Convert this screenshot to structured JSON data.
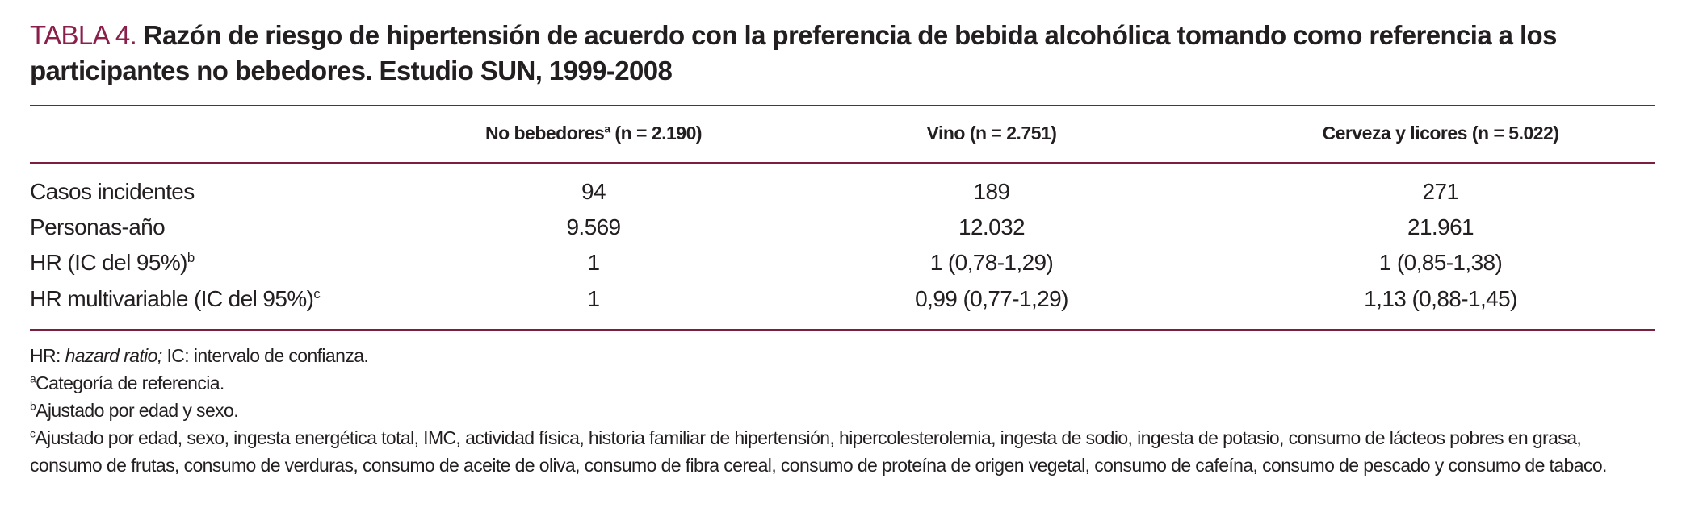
{
  "title": {
    "label": "TABLA 4.",
    "text": "Razón de riesgo de hipertensión de acuerdo con la preferencia de bebida alcohólica tomando como referencia a los participantes no bebedores. Estudio SUN, 1999-2008"
  },
  "table": {
    "columns": [
      {
        "text": "No bebedores",
        "sup": "a",
        "rest": "(n = 2.190)"
      },
      {
        "text": "Vino (n = 2.751)"
      },
      {
        "text": "Cerveza y licores (n = 5.022)"
      }
    ],
    "rows": [
      {
        "label": "Casos incidentes",
        "cells": [
          "94",
          "189",
          "271"
        ]
      },
      {
        "label": "Personas-año",
        "cells": [
          "9.569",
          "12.032",
          "21.961"
        ]
      },
      {
        "label": "HR (IC del 95%)",
        "sup": "b",
        "cells": [
          "1",
          "1 (0,78-1,29)",
          "1 (0,85-1,38)"
        ]
      },
      {
        "label": "HR multivariable (IC del 95%)",
        "sup": "c",
        "cells": [
          "1",
          "0,99 (0,77-1,29)",
          "1,13 (0,88-1,45)"
        ]
      }
    ]
  },
  "footnotes": {
    "abbrev": {
      "lead": "HR:",
      "italic": "hazard ratio;",
      "rest": "IC: intervalo de confianza."
    },
    "notes": [
      {
        "mark": "a",
        "text": "Categoría de referencia."
      },
      {
        "mark": "b",
        "text": "Ajustado por edad y sexo."
      },
      {
        "mark": "c",
        "text": "Ajustado por edad, sexo, ingesta energética total, IMC, actividad física, historia familiar de hipertensión, hipercolesterolemia, ingesta de sodio, ingesta de potasio, consumo de lácteos pobres en grasa, consumo de frutas, consumo de verduras, consumo de aceite de oliva, consumo de fibra cereal, consumo de proteína de origen vegetal, consumo de cafeína, consumo de pescado y consumo de tabaco."
      }
    ]
  }
}
